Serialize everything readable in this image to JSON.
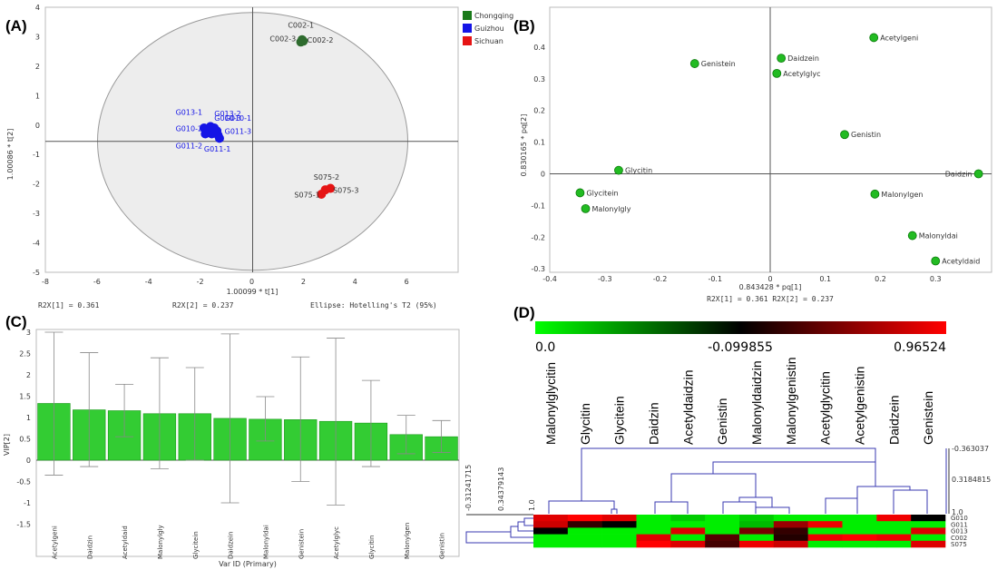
{
  "chart_data": [
    {
      "panel": "(A)",
      "type": "scatter",
      "xlabel": "1.00099 * t[1]",
      "ylabel": "1.00086 * t[2]",
      "xlim": [
        -8,
        8
      ],
      "ylim": [
        -5,
        4
      ],
      "xticks": [
        "-8",
        "-6",
        "-4",
        "-2",
        "0",
        "2",
        "4",
        "6"
      ],
      "yticks": [
        "-5",
        "-4",
        "-3",
        "-2",
        "-1",
        "0",
        "1",
        "2",
        "3",
        "4"
      ],
      "legend": {
        "position": "top-right",
        "entries": [
          {
            "name": "Chongqing",
            "color": "#1a7a1a"
          },
          {
            "name": "Guizhou",
            "color": "#1414e6"
          },
          {
            "name": "Sichuan",
            "color": "#e61414"
          }
        ]
      },
      "footer": [
        "R2X[1] = 0.361",
        "R2X[2] = 0.237",
        "Ellipse: Hotelling's T2 (95%)"
      ],
      "points": [
        {
          "x": 1.95,
          "y": 2.9,
          "group": "Chongqing",
          "color": "#2e6b2e"
        },
        {
          "x": 2.0,
          "y": 2.85,
          "group": "Chongqing",
          "color": "#2e6b2e"
        },
        {
          "x": 1.9,
          "y": 2.82,
          "group": "Chongqing",
          "color": "#2e6b2e"
        },
        {
          "x": -1.85,
          "y": -0.1,
          "group": "Guizhou",
          "color": "#1414e6"
        },
        {
          "x": -1.6,
          "y": -0.05,
          "group": "Guizhou",
          "color": "#1414e6"
        },
        {
          "x": -1.35,
          "y": -0.2,
          "group": "Guizhou",
          "color": "#1414e6"
        },
        {
          "x": -1.55,
          "y": -0.3,
          "group": "Guizhou",
          "color": "#1414e6"
        },
        {
          "x": -1.3,
          "y": -0.35,
          "group": "Guizhou",
          "color": "#1414e6"
        },
        {
          "x": -1.7,
          "y": -0.2,
          "group": "Guizhou",
          "color": "#1414e6"
        },
        {
          "x": -1.45,
          "y": -0.1,
          "group": "Guizhou",
          "color": "#1414e6"
        },
        {
          "x": -1.25,
          "y": -0.45,
          "group": "Guizhou",
          "color": "#1414e6"
        },
        {
          "x": -1.8,
          "y": -0.3,
          "group": "Guizhou",
          "color": "#1414e6"
        },
        {
          "x": 2.85,
          "y": -2.2,
          "group": "Sichuan",
          "color": "#e61414"
        },
        {
          "x": 3.05,
          "y": -2.15,
          "group": "Sichuan",
          "color": "#e61414"
        },
        {
          "x": 2.7,
          "y": -2.35,
          "group": "Sichuan",
          "color": "#e61414"
        }
      ],
      "labels": [
        {
          "text": "C002-1",
          "x": 1.4,
          "y": 3.3,
          "color": "#333333"
        },
        {
          "text": "C002-3",
          "x": 0.7,
          "y": 2.85,
          "color": "#333333"
        },
        {
          "text": "C002-2",
          "x": 2.15,
          "y": 2.8,
          "color": "#333333"
        },
        {
          "text": "G013-1",
          "x": -2.95,
          "y": 0.35,
          "color": "#1414e6"
        },
        {
          "text": "G013-2",
          "x": -1.45,
          "y": 0.3,
          "color": "#1414e6"
        },
        {
          "text": "G010-3",
          "x": -1.45,
          "y": 0.15,
          "color": "#1414e6"
        },
        {
          "text": "G010-1",
          "x": -1.05,
          "y": 0.15,
          "color": "#1414e6"
        },
        {
          "text": "G010-2",
          "x": -2.95,
          "y": -0.2,
          "color": "#1414e6"
        },
        {
          "text": "G011-3",
          "x": -1.05,
          "y": -0.3,
          "color": "#1414e6"
        },
        {
          "text": "G011-2",
          "x": -2.95,
          "y": -0.8,
          "color": "#1414e6"
        },
        {
          "text": "G011-1",
          "x": -1.85,
          "y": -0.9,
          "color": "#1414e6"
        },
        {
          "text": "S075-2",
          "x": 2.4,
          "y": -1.85,
          "color": "#333333"
        },
        {
          "text": "S075-3",
          "x": 3.15,
          "y": -2.3,
          "color": "#333333"
        },
        {
          "text": "S075-1",
          "x": 1.65,
          "y": -2.45,
          "color": "#333333"
        }
      ]
    },
    {
      "panel": "(B)",
      "type": "scatter",
      "xlabel": "0.843428 * pq[1]",
      "ylabel": "0.830165 * pq[2]",
      "footer": "R2X[1] = 0.361 R2X[2] = 0.237",
      "xlim": [
        -0.4,
        0.4
      ],
      "ylim": [
        -0.3,
        0.45
      ],
      "xticks": [
        "-0.4",
        "-0.3",
        "-0.2",
        "-0.1",
        "0",
        "0.1",
        "0.2",
        "0.3"
      ],
      "yticks": [
        "-0.3",
        "-0.2",
        "-0.1",
        "0",
        "0.1",
        "0.2",
        "0.3",
        "0.4"
      ],
      "points": [
        {
          "name": "Acetylgeni",
          "x": 0.188,
          "y": 0.43
        },
        {
          "name": "Daidzein",
          "x": 0.02,
          "y": 0.365
        },
        {
          "name": "Genistein",
          "x": -0.137,
          "y": 0.348
        },
        {
          "name": "Acetylglyc",
          "x": 0.012,
          "y": 0.317
        },
        {
          "name": "Genistin",
          "x": 0.135,
          "y": 0.124
        },
        {
          "name": "Glycitin",
          "x": -0.275,
          "y": 0.011
        },
        {
          "name": "Daidzin",
          "x": 0.378,
          "y": 0.0
        },
        {
          "name": "Glycitein",
          "x": -0.345,
          "y": -0.06
        },
        {
          "name": "Malonylgen",
          "x": 0.19,
          "y": -0.064
        },
        {
          "name": "Malonylgly",
          "x": -0.335,
          "y": -0.11
        },
        {
          "name": "Malonyldai",
          "x": 0.258,
          "y": -0.195
        },
        {
          "name": "Acetyldaid",
          "x": 0.3,
          "y": -0.275
        }
      ]
    },
    {
      "panel": "(C)",
      "type": "bar",
      "xlabel": "Var ID (Primary)",
      "ylabel": "VIP[2]",
      "ylim": [
        -1.5,
        3
      ],
      "yticks": [
        "-1.5",
        "-1",
        "-0.5",
        "0",
        "0.5",
        "1",
        "1.5",
        "2",
        "2.5",
        "3"
      ],
      "categories": [
        "Acetylgeni",
        "Daidzin",
        "Acetyldaid",
        "Malonylgly",
        "Glycitein",
        "Daidzein",
        "Malonyldai",
        "Genistein",
        "Acetylglyc",
        "Glycitin",
        "Malonylgen",
        "Genistin"
      ],
      "values": [
        1.33,
        1.18,
        1.16,
        1.09,
        1.09,
        0.98,
        0.96,
        0.95,
        0.91,
        0.87,
        0.6,
        0.55
      ],
      "err_low": [
        -0.35,
        -0.15,
        0.55,
        -0.2,
        0.0,
        -1.0,
        0.45,
        -0.5,
        -1.05,
        -0.15,
        0.15,
        0.18
      ],
      "err_high": [
        3.0,
        2.52,
        1.78,
        2.4,
        2.17,
        2.96,
        1.49,
        2.42,
        2.86,
        1.87,
        1.05,
        0.93
      ]
    },
    {
      "panel": "(D)",
      "type": "heatmap",
      "scale": {
        "min_label": "0.0",
        "mid_label": "-0.099855",
        "max_label": "0.96524"
      },
      "columns": [
        "Malonylglycitin",
        "Glycitin",
        "Glycitein",
        "Daidzin",
        "Acetyldaidzin",
        "Genistin",
        "Malonyldaidzin",
        "Malonylgenistin",
        "Acetylglycitin",
        "Acetylgenistin",
        "Daidzein",
        "Genistein"
      ],
      "rows": [
        "G010",
        "G011",
        "G013",
        "C002",
        "S075"
      ],
      "col_dendro_ticks": [
        "-0.363037",
        "0.3184815",
        "1.0"
      ],
      "row_dendro_ticks": [
        "-0.31241715",
        "0.34379143",
        "1.0"
      ],
      "cells": [
        [
          "#e00000",
          "#ff0000",
          "#e20000",
          "#00ee00",
          "#00cc00",
          "#00ee00",
          "#00cc00",
          "#00ee00",
          "#00ee00",
          "#00ee00",
          "#f00000",
          "#000000"
        ],
        [
          "#cc0000",
          "#330000",
          "#000000",
          "#00ee00",
          "#00ee00",
          "#00ee00",
          "#00bb00",
          "#990000",
          "#ee0000",
          "#00ee00",
          "#00ee00",
          "#00ee00"
        ],
        [
          "#000000",
          "#00ee00",
          "#00ee00",
          "#00ee00",
          "#dd0000",
          "#00ee00",
          "#770000",
          "#330000",
          "#00ee00",
          "#00ee00",
          "#00ee00",
          "#dd0000"
        ],
        [
          "#00ee00",
          "#00ee00",
          "#00ee00",
          "#dd0000",
          "#00ee00",
          "#550000",
          "#00ee00",
          "#220000",
          "#ee0000",
          "#ff0000",
          "#ee0000",
          "#00ee00"
        ],
        [
          "#00ee00",
          "#00ee00",
          "#00ee00",
          "#ff0000",
          "#dd0000",
          "#440000",
          "#ee0000",
          "#cc0000",
          "#00ee00",
          "#00ee00",
          "#00ee00",
          "#dd0000"
        ]
      ]
    }
  ]
}
